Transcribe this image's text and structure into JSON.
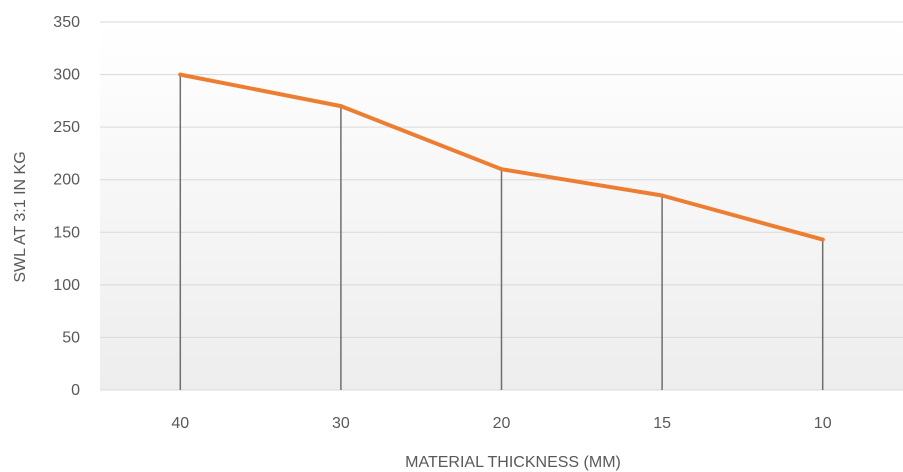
{
  "chart_data": {
    "type": "line",
    "title": "",
    "xlabel": "MATERIAL THICKNESS (MM)",
    "ylabel": "SWL AT 3:1 IN KG",
    "categories": [
      "40",
      "30",
      "20",
      "15",
      "10"
    ],
    "series": [
      {
        "values": [
          300,
          270,
          210,
          185,
          143
        ]
      }
    ],
    "ylim": [
      0,
      350
    ],
    "yticks": [
      "0",
      "50",
      "100",
      "150",
      "200",
      "250",
      "300",
      "350"
    ],
    "grid": true,
    "drop_lines": true,
    "legend": "none",
    "colors": {
      "line": "#ED7D31",
      "drop_line": "#6E6E6E",
      "grid": "#D9D9D9",
      "plot_bg_top": "#FFFFFF",
      "plot_bg_bottom": "#EDEDED",
      "text": "#595959"
    }
  }
}
